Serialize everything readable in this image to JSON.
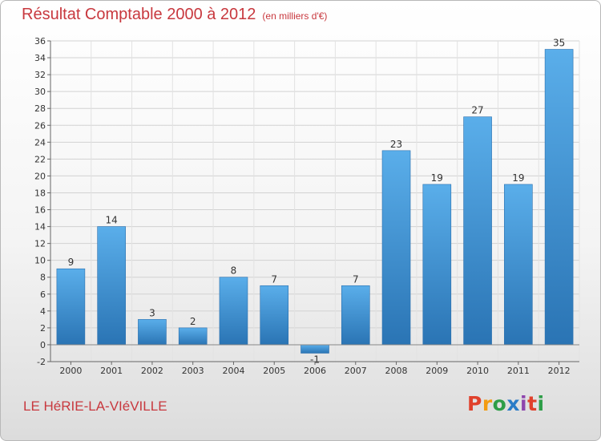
{
  "header": {
    "title": "Résultat Comptable 2000 à 2012",
    "unit": "(en milliers d'€)"
  },
  "place_name": "LE HéRIE-LA-VIéVILLE",
  "logo": {
    "letters": [
      "P",
      "r",
      "o",
      "x",
      "i",
      "t",
      "i"
    ]
  },
  "colors": {
    "bar": "#3c94d8",
    "bar_light": "#5aaeea",
    "bar_dark": "#2a74b4",
    "title": "#c8383e",
    "grid": "#d0d0d0"
  },
  "chart_data": {
    "type": "bar",
    "title": "Résultat Comptable 2000 à 2012",
    "xlabel": "",
    "ylabel": "",
    "categories": [
      "2000",
      "2001",
      "2002",
      "2003",
      "2004",
      "2005",
      "2006",
      "2007",
      "2008",
      "2009",
      "2010",
      "2011",
      "2012"
    ],
    "values": [
      9,
      14,
      3,
      2,
      8,
      7,
      -1,
      7,
      23,
      19,
      27,
      19,
      35
    ],
    "ylim": [
      -2,
      36
    ],
    "yticks": [
      -2,
      0,
      2,
      4,
      6,
      8,
      10,
      12,
      14,
      16,
      18,
      20,
      22,
      24,
      26,
      28,
      30,
      32,
      34,
      36
    ],
    "grid": true,
    "legend": "none"
  }
}
